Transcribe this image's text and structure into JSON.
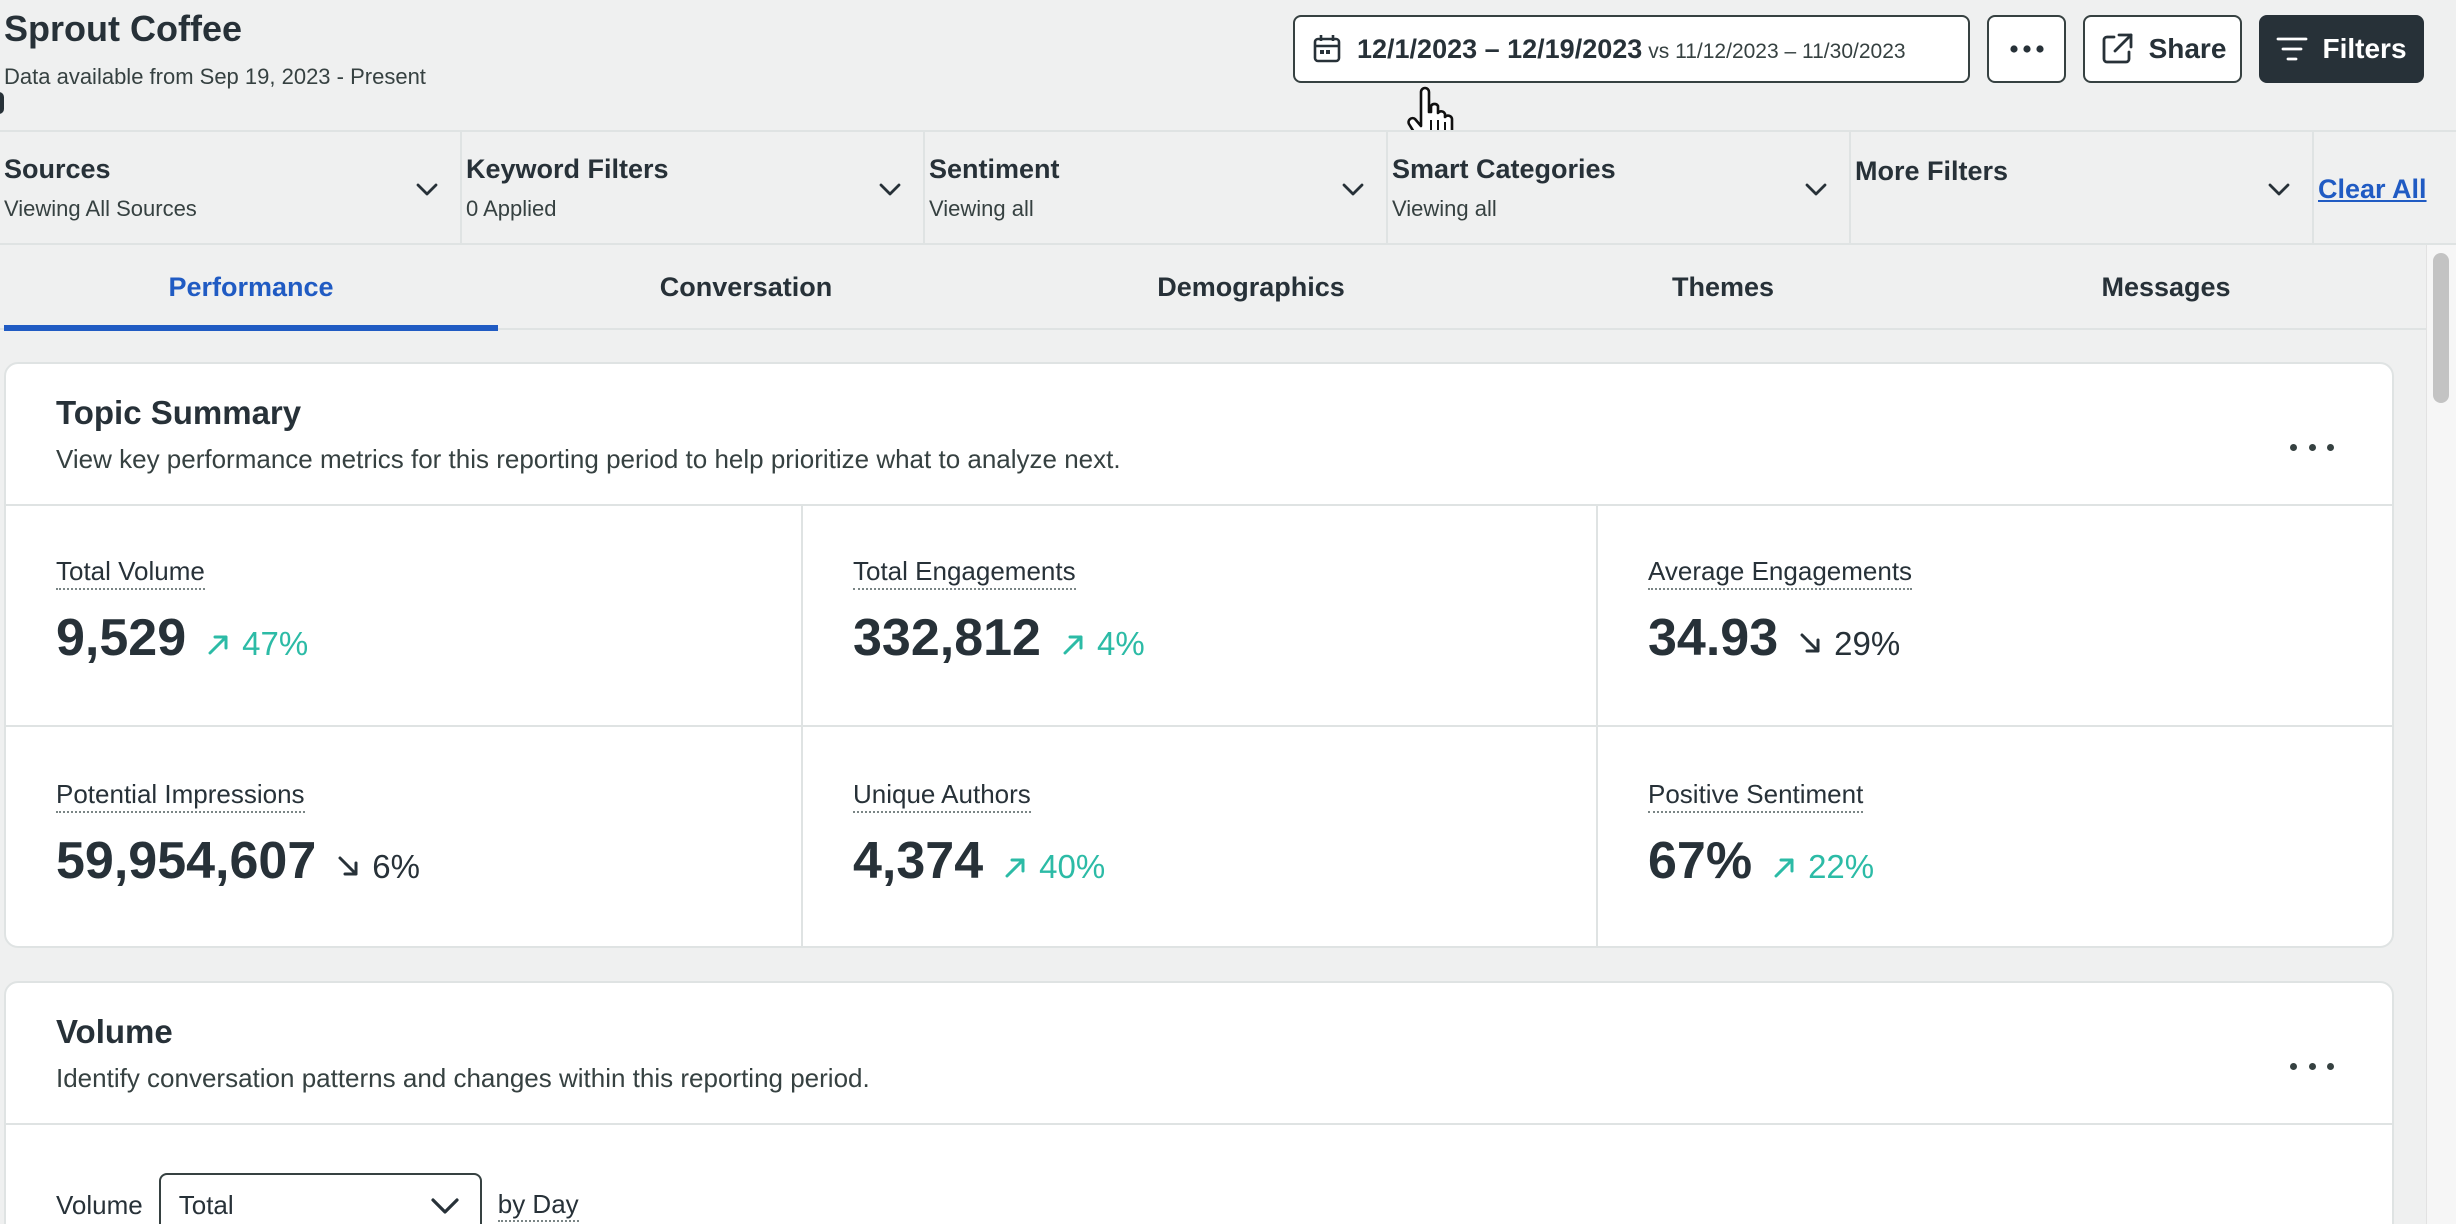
{
  "header": {
    "title": "Sprout Coffee",
    "subtitle": "Data available from Sep 19, 2023 - Present",
    "date_range": "12/1/2023 – 12/19/2023",
    "compare_label": "vs 11/12/2023 – 11/30/2023",
    "more_icon": "ellipsis-icon",
    "share_label": "Share",
    "filters_label": "Filters"
  },
  "filters": [
    {
      "label": "Sources",
      "value": "Viewing All Sources"
    },
    {
      "label": "Keyword Filters",
      "value": "0 Applied"
    },
    {
      "label": "Sentiment",
      "value": "Viewing all"
    },
    {
      "label": "Smart Categories",
      "value": "Viewing all"
    },
    {
      "label": "More Filters",
      "value": ""
    }
  ],
  "clear_all_label": "Clear All",
  "tabs": [
    {
      "label": "Performance",
      "active": true
    },
    {
      "label": "Conversation",
      "active": false
    },
    {
      "label": "Demographics",
      "active": false
    },
    {
      "label": "Themes",
      "active": false
    },
    {
      "label": "Messages",
      "active": false
    }
  ],
  "topic_summary": {
    "title": "Topic Summary",
    "description": "View key performance metrics for this reporting period to help prioritize what to analyze next.",
    "metrics": [
      {
        "label": "Total Volume",
        "value": "9,529",
        "direction": "up",
        "change": "47%"
      },
      {
        "label": "Total Engagements",
        "value": "332,812",
        "direction": "up",
        "change": "4%"
      },
      {
        "label": "Average Engagements",
        "value": "34.93",
        "direction": "down",
        "change": "29%"
      },
      {
        "label": "Potential Impressions",
        "value": "59,954,607",
        "direction": "down",
        "change": "6%"
      },
      {
        "label": "Unique Authors",
        "value": "4,374",
        "direction": "up",
        "change": "40%"
      },
      {
        "label": "Positive Sentiment",
        "value": "67%",
        "direction": "up",
        "change": "22%"
      }
    ]
  },
  "volume": {
    "title": "Volume",
    "description": "Identify conversation patterns and changes within this reporting period.",
    "metric_label": "Volume",
    "select_value": "Total",
    "by_label": "by Day"
  },
  "colors": {
    "accent": "#205bc3",
    "positive": "#2cbba6",
    "dark": "#273138",
    "border": "#dfe3e3",
    "background": "#eff0f0"
  }
}
